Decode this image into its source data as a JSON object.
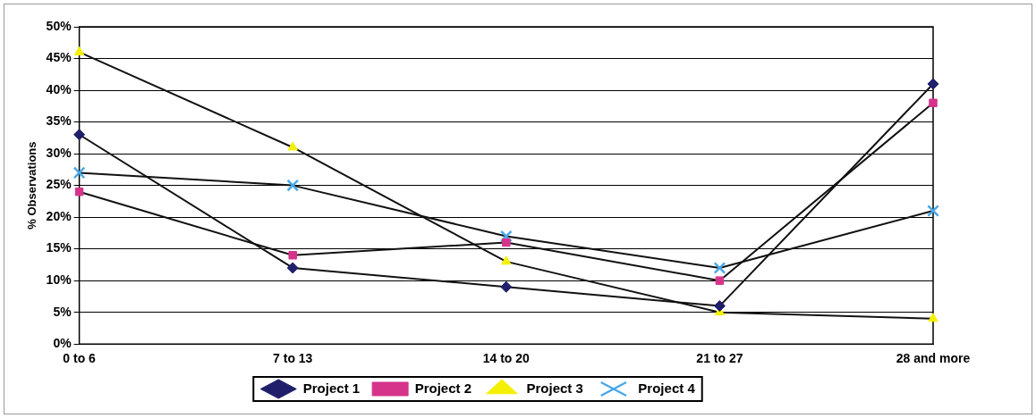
{
  "chart_data": {
    "type": "line",
    "ylabel": "% Observations",
    "categories": [
      "0 to 6",
      "7 to 13",
      "14 to 20",
      "21 to 27",
      "28 and more"
    ],
    "ylim": [
      0,
      50
    ],
    "yticks": [
      {
        "value": 0,
        "label": "0%"
      },
      {
        "value": 5,
        "label": "5%"
      },
      {
        "value": 10,
        "label": "10%"
      },
      {
        "value": 15,
        "label": "15%"
      },
      {
        "value": 20,
        "label": "20%"
      },
      {
        "value": 25,
        "label": "25%"
      },
      {
        "value": 30,
        "label": "30%"
      },
      {
        "value": 35,
        "label": "35%"
      },
      {
        "value": 40,
        "label": "40%"
      },
      {
        "value": 45,
        "label": "45%"
      },
      {
        "value": 50,
        "label": "50%"
      }
    ],
    "grid": "y",
    "legend": "bottom",
    "line_style": "solid",
    "series": [
      {
        "name": "Project 1",
        "color": "#1f1f6b",
        "marker": "diamond",
        "values": [
          33,
          12,
          9,
          6,
          41
        ]
      },
      {
        "name": "Project 2",
        "color": "#d6338a",
        "marker": "square",
        "values": [
          24,
          14,
          16,
          10,
          38
        ]
      },
      {
        "name": "Project 3",
        "color": "#f5f000",
        "marker": "triangle",
        "values": [
          46,
          31,
          13,
          5,
          4
        ]
      },
      {
        "name": "Project 4",
        "color": "#4aa8e8",
        "marker": "cross",
        "values": [
          27,
          25,
          17,
          12,
          21
        ]
      }
    ]
  }
}
